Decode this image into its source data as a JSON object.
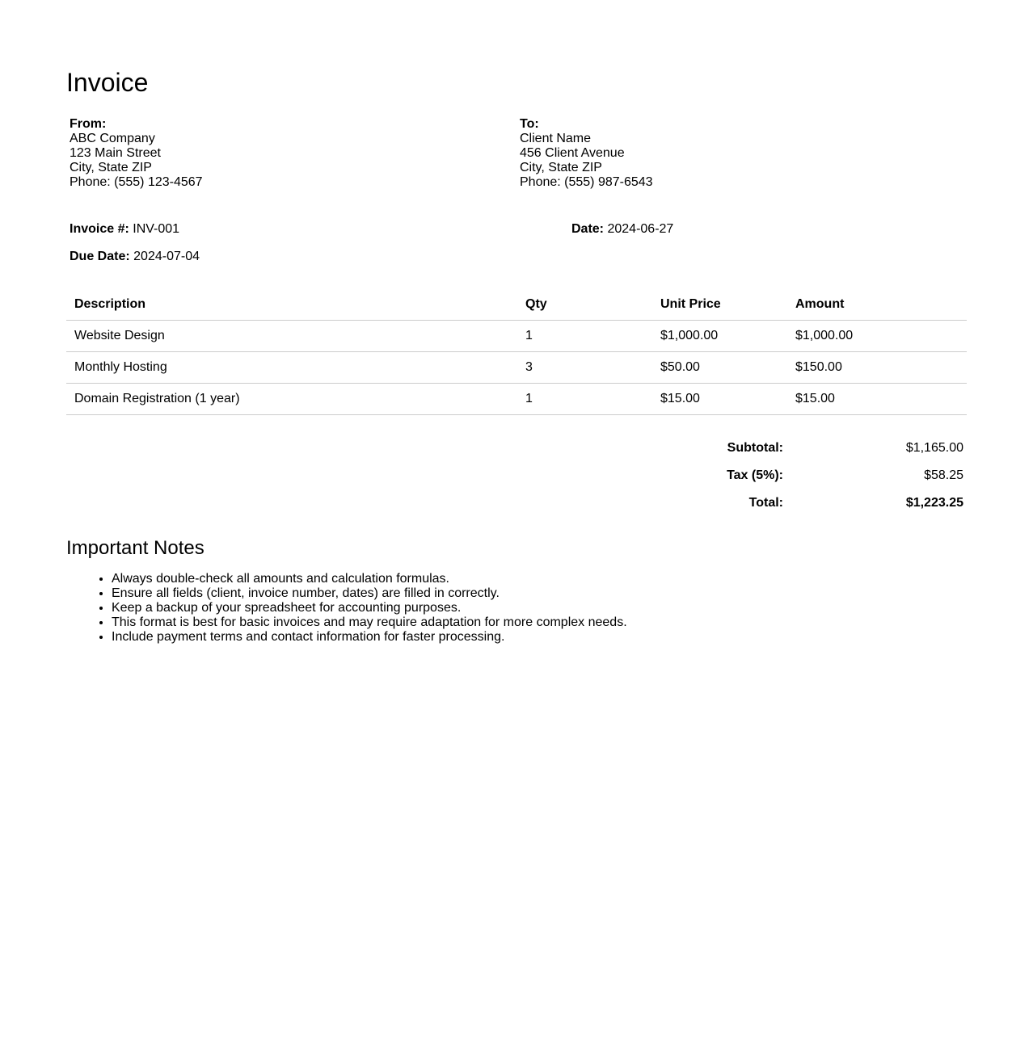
{
  "title": "Invoice",
  "from": {
    "label": "From:",
    "lines": [
      "ABC Company",
      "123 Main Street",
      "City, State ZIP",
      "Phone: (555) 123-4567"
    ]
  },
  "to": {
    "label": "To:",
    "lines": [
      "Client Name",
      "456 Client Avenue",
      "City, State ZIP",
      "Phone: (555) 987-6543"
    ]
  },
  "meta": {
    "invoice_label": "Invoice #:",
    "invoice_value": "INV-001",
    "date_label": "Date:",
    "date_value": "2024-06-27",
    "due_label": "Due Date:",
    "due_value": "2024-07-04"
  },
  "table": {
    "headers": [
      "Description",
      "Qty",
      "Unit Price",
      "Amount"
    ],
    "rows": [
      [
        "Website Design",
        "1",
        "$1,000.00",
        "$1,000.00"
      ],
      [
        "Monthly Hosting",
        "3",
        "$50.00",
        "$150.00"
      ],
      [
        "Domain Registration (1 year)",
        "1",
        "$15.00",
        "$15.00"
      ]
    ]
  },
  "totals": {
    "subtotal_label": "Subtotal:",
    "subtotal": "$1,165.00",
    "tax_label": "Tax (5%):",
    "tax": "$58.25",
    "total_label": "Total:",
    "total": "$1,223.25"
  },
  "notes": {
    "title": "Important Notes",
    "items": [
      "Always double-check all amounts and calculation formulas.",
      "Ensure all fields (client, invoice number, dates) are filled in correctly.",
      "Keep a backup of your spreadsheet for accounting purposes.",
      "This format is best for basic invoices and may require adaptation for more complex needs.",
      "Include payment terms and contact information for faster processing."
    ]
  }
}
